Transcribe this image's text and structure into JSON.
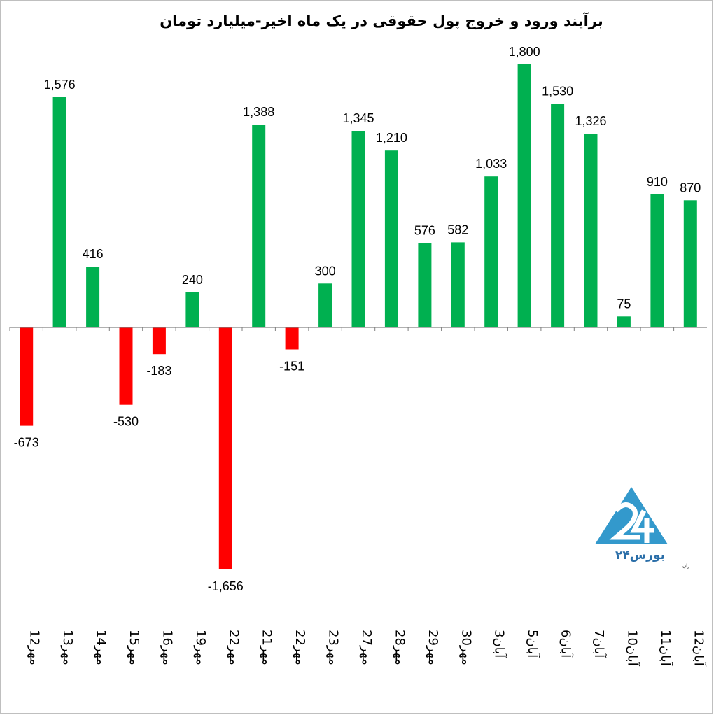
{
  "chart_data": {
    "type": "bar",
    "title": "برآیند ورود و خروج پول حقوقی در یک ماه اخیر-میلیارد تومان",
    "categories": [
      "12مهر",
      "13مهر",
      "14مهر",
      "15مهر",
      "16مهر",
      "19مهر",
      "22مهر",
      "21مهر",
      "22مهر",
      "23مهر",
      "27مهر",
      "28مهر",
      "29مهر",
      "30مهر",
      "3آبان",
      "5آبان",
      "6آبان",
      "7آبان",
      "10آبان",
      "11آبان",
      "12آبان"
    ],
    "values": [
      -673,
      1576,
      416,
      -530,
      -183,
      240,
      -1656,
      1388,
      -151,
      300,
      1345,
      1210,
      576,
      582,
      1033,
      1800,
      1530,
      1326,
      75,
      910,
      870
    ],
    "data_labels": [
      "-673",
      "1,576",
      "416",
      "-530",
      "-183",
      "240",
      "-1,656",
      "1,388",
      "-151",
      "300",
      "1,345",
      "1,210",
      "576",
      "582",
      "1,033",
      "1,800",
      "1,530",
      "1,326",
      "75",
      "910",
      "870"
    ],
    "ylim": [
      -1900,
      2000
    ],
    "grid": false,
    "colors": {
      "positive": "#00b050",
      "negative": "#ff0000",
      "axis": "#808080"
    }
  },
  "logo": {
    "name": "بورس۲۴",
    "tagline": "پایگاه اطلاع رسانی و تحلیلی بورس ایران",
    "color": "#3399cc"
  }
}
